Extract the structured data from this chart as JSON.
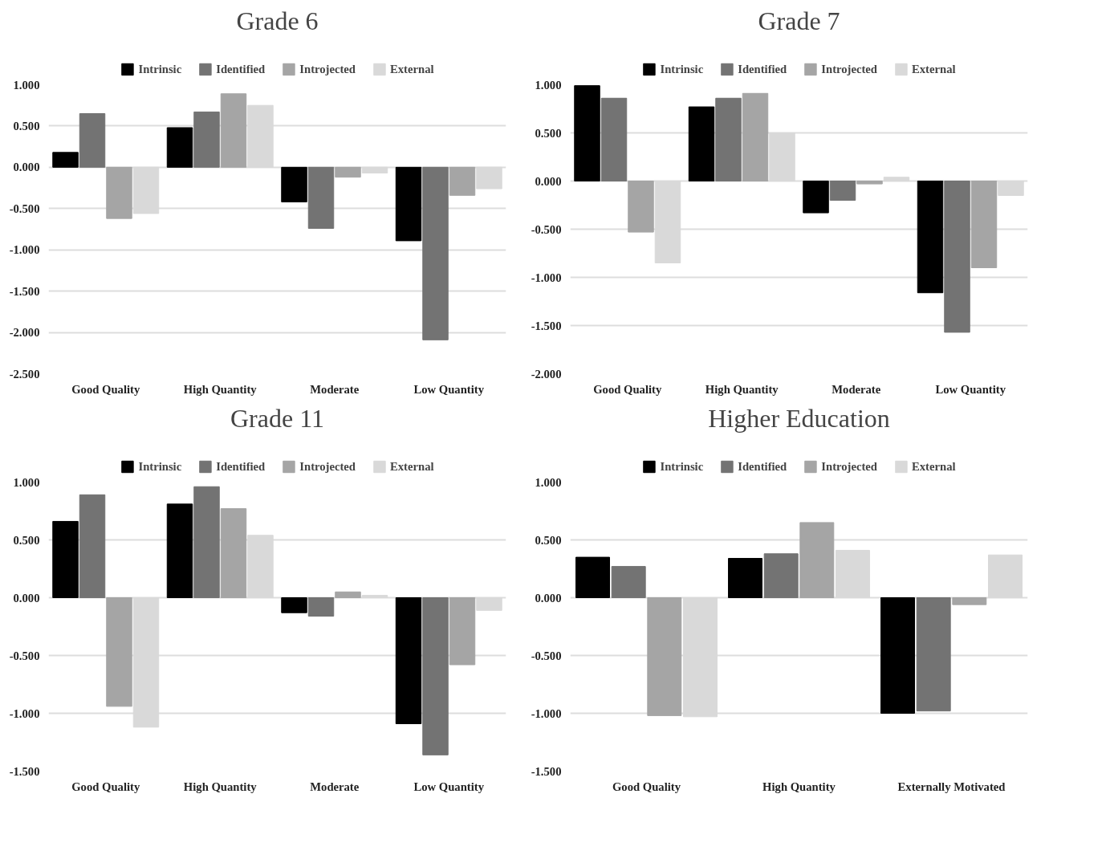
{
  "chart_data": [
    {
      "type": "bar",
      "title": "Grade 6",
      "categories": [
        "Good Quality",
        "High Quantity",
        "Moderate",
        "Low Quantity"
      ],
      "series": [
        {
          "name": "Intrinsic",
          "color": "#000000",
          "values": [
            0.18,
            0.48,
            -0.42,
            -0.89
          ]
        },
        {
          "name": "Identified",
          "color": "#737373",
          "values": [
            0.65,
            0.67,
            -0.74,
            -2.09
          ]
        },
        {
          "name": "Introjected",
          "color": "#a5a5a5",
          "values": [
            -0.62,
            0.89,
            -0.12,
            -0.34
          ]
        },
        {
          "name": "External",
          "color": "#d9d9d9",
          "values": [
            -0.56,
            0.75,
            -0.07,
            -0.26
          ]
        }
      ],
      "ylim": [
        -2.5,
        1.0
      ],
      "yticks": [
        {
          "value": -2.5,
          "label": "-2.500"
        },
        {
          "value": -2,
          "label": "-2.000"
        },
        {
          "value": -1.5,
          "label": "-1.500"
        },
        {
          "value": -1,
          "label": "-1.000"
        },
        {
          "value": -0.5,
          "label": "-0.500"
        },
        {
          "value": 0,
          "label": "0.000"
        },
        {
          "value": 0.5,
          "label": "0.500"
        },
        {
          "value": 1,
          "label": "1.000"
        }
      ],
      "grid": "y",
      "legend": "top"
    },
    {
      "type": "bar",
      "title": "Grade 7",
      "categories": [
        "Good Quality",
        "High Quantity",
        "Moderate",
        "Low Quantity"
      ],
      "series": [
        {
          "name": "Intrinsic",
          "color": "#000000",
          "values": [
            0.99,
            0.77,
            -0.33,
            -1.16
          ]
        },
        {
          "name": "Identified",
          "color": "#737373",
          "values": [
            0.86,
            0.86,
            -0.2,
            -1.57
          ]
        },
        {
          "name": "Introjected",
          "color": "#a5a5a5",
          "values": [
            -0.53,
            0.91,
            -0.03,
            -0.9
          ]
        },
        {
          "name": "External",
          "color": "#d9d9d9",
          "values": [
            -0.85,
            0.5,
            0.04,
            -0.15
          ]
        }
      ],
      "ylim": [
        -2.0,
        1.0
      ],
      "yticks": [
        {
          "value": -2,
          "label": "-2.000"
        },
        {
          "value": -1.5,
          "label": "-1.500"
        },
        {
          "value": -1,
          "label": "-1.000"
        },
        {
          "value": -0.5,
          "label": "-0.500"
        },
        {
          "value": 0,
          "label": "0.000"
        },
        {
          "value": 0.5,
          "label": "0.500"
        },
        {
          "value": 1,
          "label": "1.000"
        }
      ],
      "grid": "y",
      "legend": "top"
    },
    {
      "type": "bar",
      "title": "Grade 11",
      "categories": [
        "Good Quality",
        "High Quantity",
        "Moderate",
        "Low Quantity"
      ],
      "series": [
        {
          "name": "Intrinsic",
          "color": "#000000",
          "values": [
            0.66,
            0.81,
            -0.13,
            -1.09
          ]
        },
        {
          "name": "Identified",
          "color": "#737373",
          "values": [
            0.89,
            0.96,
            -0.16,
            -1.36
          ]
        },
        {
          "name": "Introjected",
          "color": "#a5a5a5",
          "values": [
            -0.94,
            0.77,
            0.05,
            -0.58
          ]
        },
        {
          "name": "External",
          "color": "#d9d9d9",
          "values": [
            -1.12,
            0.54,
            0.02,
            -0.11
          ]
        }
      ],
      "ylim": [
        -1.5,
        1.0
      ],
      "yticks": [
        {
          "value": -1.5,
          "label": "-1.500"
        },
        {
          "value": -1,
          "label": "-1.000"
        },
        {
          "value": -0.5,
          "label": "-0.500"
        },
        {
          "value": 0,
          "label": "0.000"
        },
        {
          "value": 0.5,
          "label": "0.500"
        },
        {
          "value": 1,
          "label": "1.000"
        }
      ],
      "grid": "y",
      "legend": "top"
    },
    {
      "type": "bar",
      "title": "Higher Education",
      "categories": [
        "Good Quality",
        "High Quantity",
        "Externally Motivated"
      ],
      "series": [
        {
          "name": "Intrinsic",
          "color": "#000000",
          "values": [
            0.35,
            0.34,
            -1.0
          ]
        },
        {
          "name": "Identified",
          "color": "#737373",
          "values": [
            0.27,
            0.38,
            -0.98
          ]
        },
        {
          "name": "Introjected",
          "color": "#a5a5a5",
          "values": [
            -1.02,
            0.65,
            -0.06
          ]
        },
        {
          "name": "External",
          "color": "#d9d9d9",
          "values": [
            -1.03,
            0.41,
            0.37
          ]
        }
      ],
      "ylim": [
        -1.5,
        1.0
      ],
      "yticks": [
        {
          "value": -1.5,
          "label": "-1.500"
        },
        {
          "value": -1,
          "label": "-1.000"
        },
        {
          "value": -0.5,
          "label": "-0.500"
        },
        {
          "value": 0,
          "label": "0.000"
        },
        {
          "value": 0.5,
          "label": "0.500"
        },
        {
          "value": 1,
          "label": "1.000"
        }
      ],
      "grid": "y",
      "legend": "top"
    }
  ]
}
